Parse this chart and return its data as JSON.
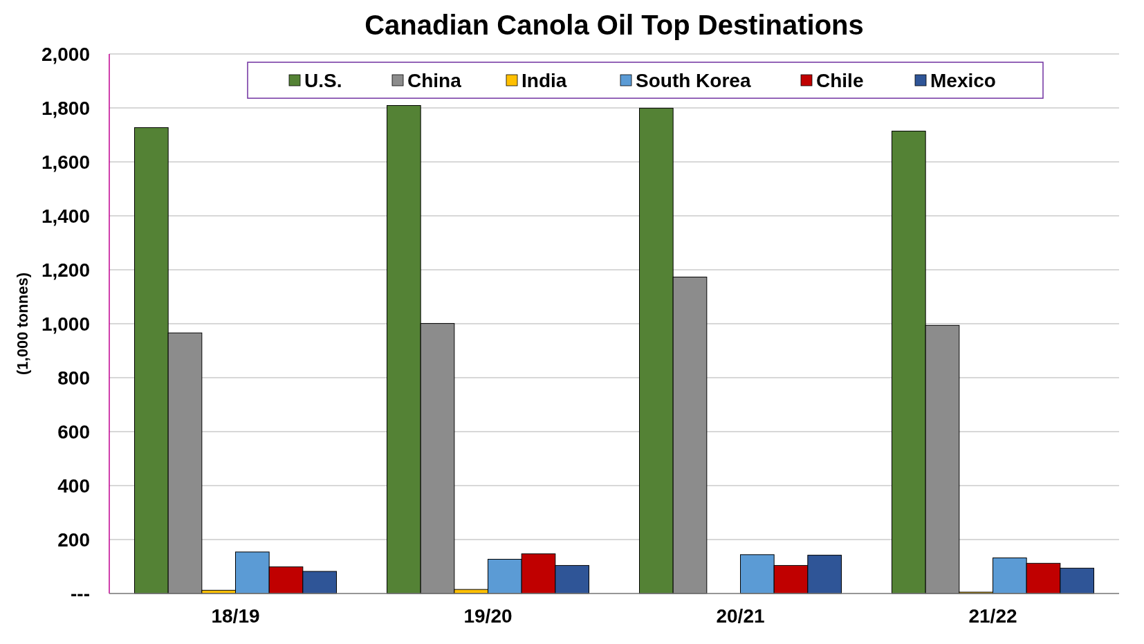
{
  "chart_data": {
    "type": "bar",
    "title": "Canadian Canola Oil Top Destinations",
    "ylabel": "(1,000 tonnes)",
    "categories": [
      "18/19",
      "19/20",
      "20/21",
      "21/22"
    ],
    "series": [
      {
        "name": "U.S.",
        "color": "#548235",
        "values": [
          1727,
          1809,
          1799,
          1714
        ]
      },
      {
        "name": "China",
        "color": "#8c8c8c",
        "values": [
          966,
          1001,
          1173,
          994
        ]
      },
      {
        "name": "India",
        "color": "#ffc000",
        "values": [
          12,
          15,
          0,
          5
        ]
      },
      {
        "name": "South Korea",
        "color": "#5b9bd5",
        "values": [
          154,
          127,
          144,
          132
        ]
      },
      {
        "name": "Chile",
        "color": "#c00000",
        "values": [
          99,
          147,
          104,
          112
        ]
      },
      {
        "name": "Mexico",
        "color": "#2f5597",
        "values": [
          82,
          104,
          142,
          94
        ]
      }
    ],
    "ylim": [
      0,
      2000
    ],
    "yticks": [
      {
        "value": 0,
        "label": "---"
      },
      200,
      400,
      600,
      800,
      {
        "value": 1000,
        "label": "1,000"
      },
      {
        "value": 1200,
        "label": "1,200"
      },
      {
        "value": 1400,
        "label": "1,400"
      },
      {
        "value": 1600,
        "label": "1,600"
      },
      {
        "value": 1800,
        "label": "1,800"
      },
      {
        "value": 2000,
        "label": "2,000"
      }
    ],
    "grid": "y",
    "legend": "top"
  }
}
